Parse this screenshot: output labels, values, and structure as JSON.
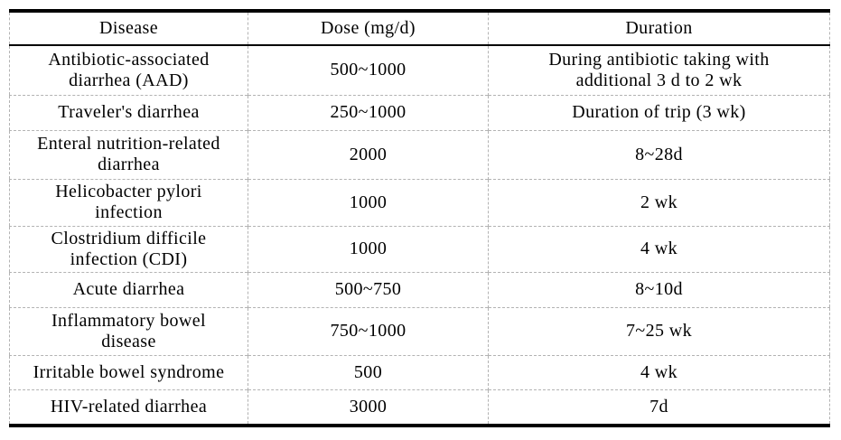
{
  "chart_data": {
    "type": "table",
    "title": "",
    "columns": [
      "Disease",
      "Dose (mg/d)",
      "Duration"
    ],
    "rows": [
      [
        "Antibiotic-associated\ndiarrhea (AAD)",
        "500~1000",
        "During antibiotic taking with\nadditional 3 d to 2 wk"
      ],
      [
        "Traveler's diarrhea",
        "250~1000",
        "Duration of trip (3 wk)"
      ],
      [
        "Enteral nutrition-related\ndiarrhea",
        "2000",
        "8~28d"
      ],
      [
        "Helicobacter pylori\ninfection",
        "1000",
        "2 wk"
      ],
      [
        "Clostridium difficile\ninfection (CDI)",
        "1000",
        "4 wk"
      ],
      [
        "Acute diarrhea",
        "500~750",
        "8~10d"
      ],
      [
        "Inflammatory bowel\ndisease",
        "750~1000",
        "7~25 wk"
      ],
      [
        "Irritable bowel syndrome",
        "500",
        "4 wk"
      ],
      [
        "HIV-related diarrhea",
        "3000",
        "7d"
      ]
    ],
    "layout": {
      "header_position": "top",
      "text_align": "center",
      "outer_border_color": "#000000",
      "header_rule_color": "#000000",
      "grid_line_style": "dashed",
      "grid_line_color": "#b3b3b3",
      "text_color": "#000000",
      "background_color": "#ffffff"
    }
  }
}
